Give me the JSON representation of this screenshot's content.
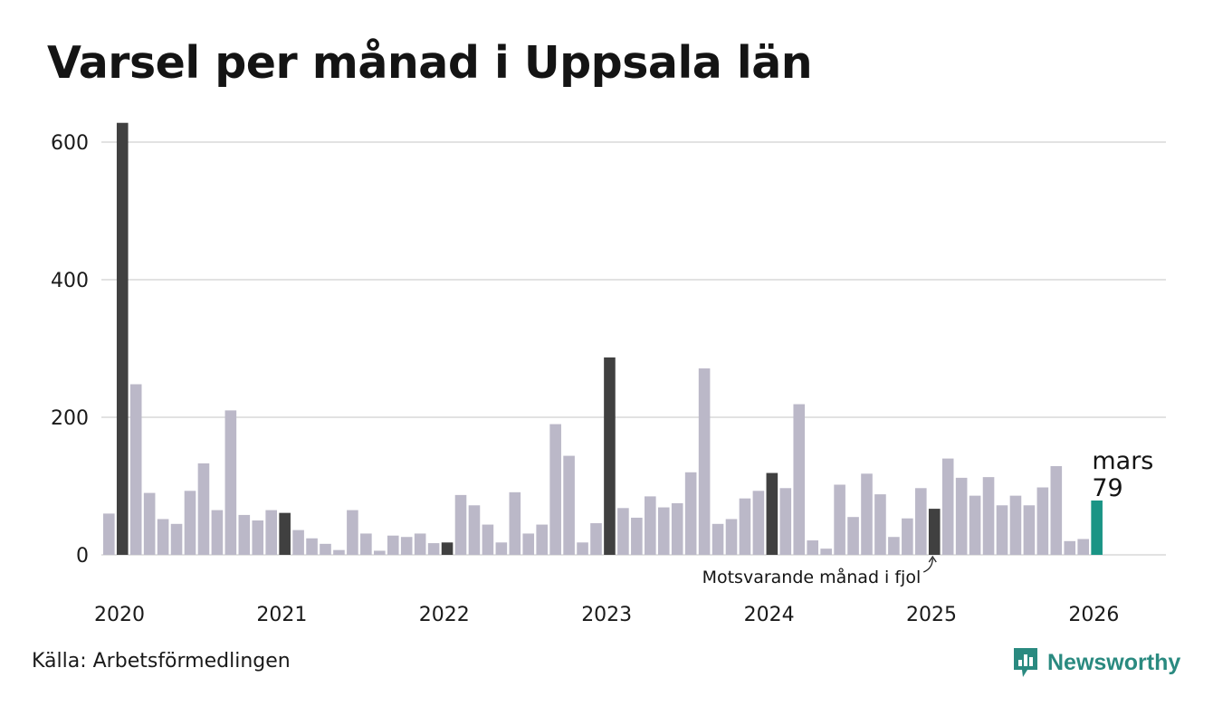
{
  "chart_data": {
    "type": "bar",
    "title": "Varsel per månad i Uppsala län",
    "xlabel": "",
    "ylabel": "",
    "ylim": [
      0,
      640
    ],
    "yticks": [
      0,
      200,
      400,
      600
    ],
    "xtick_labels": [
      "2020",
      "2021",
      "2022",
      "2023",
      "2024",
      "2025",
      "2026"
    ],
    "grid": true,
    "colors": {
      "default": "#bbb8c8",
      "same_month": "#404040",
      "current": "#1a9485",
      "grid": "#e2e2e2",
      "brand": "#2a8a80"
    },
    "values": [
      60,
      628,
      248,
      90,
      52,
      45,
      93,
      133,
      65,
      210,
      58,
      50,
      65,
      61,
      36,
      24,
      16,
      7,
      65,
      31,
      6,
      28,
      26,
      31,
      17,
      18,
      87,
      72,
      44,
      18,
      91,
      31,
      44,
      190,
      144,
      18,
      46,
      287,
      68,
      54,
      85,
      69,
      75,
      120,
      271,
      45,
      52,
      82,
      93,
      119,
      97,
      219,
      21,
      9,
      102,
      55,
      118,
      88,
      26,
      53,
      97,
      67,
      140,
      112,
      86,
      113,
      72,
      86,
      72,
      98,
      129,
      20,
      23,
      79
    ],
    "same_month_indices": [
      1,
      13,
      25,
      37,
      49,
      61
    ],
    "current_index": 73,
    "highlight": {
      "month": "mars",
      "value": "79"
    },
    "annotation": "Motsvarande månad i fjol"
  },
  "source": "Källa: Arbetsförmedlingen",
  "brand": {
    "name": "Newsworthy",
    "icon": "newsworthy-logo-icon"
  }
}
